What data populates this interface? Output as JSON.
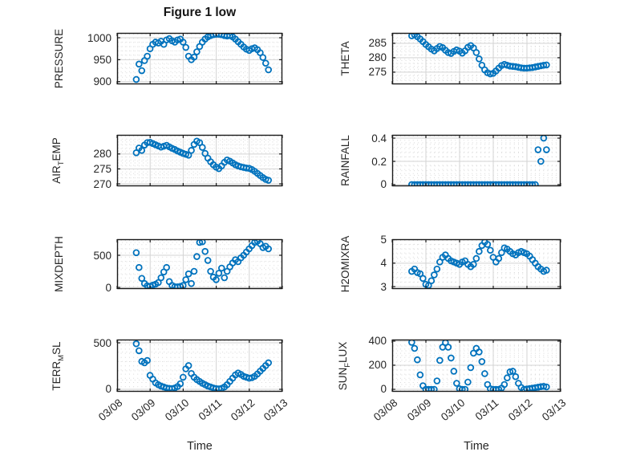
{
  "chart_data": {
    "type": "scatter",
    "figure_title": "Figure 1 low",
    "xlabel": "Time",
    "marker": "open-circle",
    "marker_color": "#0072BD",
    "axis_color": "#1a1a1a",
    "label_color": "#262626",
    "grid_major_color": "#d3d3d3",
    "grid_minor_color": "#d9d9d9",
    "grid": "on",
    "minor_grid": "dotted",
    "layout": "4 rows x 2 columns",
    "x_unit": "days since 03/08 00:00",
    "xlim_days": [
      0,
      5
    ],
    "x_tick_positions_days": [
      0,
      1,
      2,
      3,
      4,
      5
    ],
    "x_tick_labels": [
      "03/08",
      "03/09",
      "03/10",
      "03/11",
      "03/12",
      "03/13"
    ],
    "x_minor_step_days": 0.125,
    "x_days": [
      0.58,
      0.663,
      0.747,
      0.83,
      0.913,
      0.997,
      1.08,
      1.163,
      1.247,
      1.33,
      1.413,
      1.497,
      1.58,
      1.663,
      1.747,
      1.83,
      1.913,
      1.997,
      2.08,
      2.163,
      2.247,
      2.33,
      2.413,
      2.497,
      2.58,
      2.663,
      2.747,
      2.83,
      2.913,
      2.997,
      3.08,
      3.163,
      3.247,
      3.33,
      3.413,
      3.497,
      3.58,
      3.663,
      3.747,
      3.83,
      3.913,
      3.997,
      4.08,
      4.163,
      4.247,
      4.33,
      4.413,
      4.497,
      4.58
    ],
    "subplots": [
      {
        "name": "PRESSURE",
        "row": 0,
        "col": 0,
        "ylabel_pre": "PRESSURE",
        "ylabel_sub": "",
        "ylabel_post": "",
        "yticks": [
          900,
          950,
          1000
        ],
        "ytick_labels": [
          "900",
          "950",
          "1000"
        ],
        "ylim": [
          894,
          1011
        ],
        "yminor": 10,
        "y": [
          905,
          940,
          925,
          948,
          958,
          975,
          985,
          990,
          988,
          992,
          985,
          995,
          998,
          993,
          990,
          995,
          997,
          990,
          978,
          958,
          950,
          956,
          968,
          980,
          990,
          997,
          1002,
          1005,
          1007,
          1008,
          1008,
          1007,
          1005,
          1004,
          1005,
          1002,
          997,
          991,
          985,
          979,
          974,
          971,
          975,
          977,
          973,
          966,
          955,
          942,
          927
        ]
      },
      {
        "name": "THETA",
        "row": 0,
        "col": 1,
        "ylabel_pre": "THETA",
        "ylabel_sub": "",
        "ylabel_post": "",
        "yticks": [
          275,
          280,
          285
        ],
        "ytick_labels": [
          "275",
          "280",
          "285"
        ],
        "ylim": [
          270.8,
          288.6
        ],
        "yminor": 1,
        "y": [
          287.6,
          288.0,
          287.3,
          286.5,
          285.6,
          284.6,
          283.8,
          283.0,
          282.4,
          283.2,
          283.9,
          283.5,
          282.6,
          281.8,
          281.5,
          282.2,
          282.7,
          282.3,
          281.6,
          282.4,
          283.6,
          284.2,
          283.4,
          281.8,
          279.6,
          277.4,
          275.8,
          274.8,
          274.4,
          274.6,
          275.4,
          276.4,
          277.3,
          277.7,
          277.4,
          277.1,
          277.0,
          276.9,
          276.7,
          276.5,
          276.4,
          276.4,
          276.5,
          276.6,
          276.8,
          277.0,
          277.2,
          277.4,
          277.5
        ]
      },
      {
        "name": "AIR_TEMP",
        "row": 1,
        "col": 0,
        "ylabel_pre": "AIR",
        "ylabel_sub": "T",
        "ylabel_post": "EMP",
        "yticks": [
          270,
          275,
          280
        ],
        "ytick_labels": [
          "270",
          "275",
          "280"
        ],
        "ylim": [
          269.2,
          286.4
        ],
        "yminor": 1,
        "y": [
          280.4,
          282.0,
          281.2,
          283.0,
          283.8,
          283.9,
          283.5,
          283.1,
          282.7,
          282.3,
          282.6,
          282.9,
          282.4,
          281.9,
          281.5,
          281.0,
          280.6,
          280.2,
          279.9,
          279.6,
          281.2,
          283.2,
          284.3,
          283.8,
          282.2,
          280.2,
          278.6,
          277.4,
          276.4,
          275.6,
          275.1,
          276.0,
          277.2,
          278.0,
          277.6,
          277.0,
          276.4,
          276.0,
          275.7,
          275.5,
          275.3,
          275.2,
          274.8,
          274.2,
          273.5,
          272.8,
          272.1,
          271.5,
          271.2
        ]
      },
      {
        "name": "RAINFALL",
        "row": 1,
        "col": 1,
        "ylabel_pre": "RAINFALL",
        "ylabel_sub": "",
        "ylabel_post": "",
        "yticks": [
          0,
          0.2,
          0.4
        ],
        "ytick_labels": [
          "0",
          "0.2",
          "0.4"
        ],
        "ylim": [
          -0.014,
          0.428
        ],
        "yminor": 0.04,
        "y": [
          0,
          0,
          0,
          0,
          0,
          0,
          0,
          0,
          0,
          0,
          0,
          0,
          0,
          0,
          0,
          0,
          0,
          0,
          0,
          0,
          0,
          0,
          0,
          0,
          0,
          0,
          0,
          0,
          0,
          0,
          0,
          0,
          0,
          0,
          0,
          0,
          0,
          0,
          0,
          0,
          0,
          0,
          0,
          0,
          0,
          0.3,
          0.2,
          0.4,
          0.3
        ]
      },
      {
        "name": "MIXDEPTH",
        "row": 2,
        "col": 0,
        "ylabel_pre": "MIXDEPTH",
        "ylabel_sub": "",
        "ylabel_post": "",
        "yticks": [
          0,
          500
        ],
        "ytick_labels": [
          "0",
          "500"
        ],
        "ylim": [
          -25,
          750
        ],
        "yminor": 100,
        "y": [
          540,
          310,
          140,
          60,
          25,
          15,
          35,
          50,
          75,
          150,
          240,
          310,
          90,
          30,
          10,
          8,
          15,
          30,
          120,
          210,
          60,
          250,
          480,
          700,
          710,
          560,
          420,
          250,
          160,
          120,
          220,
          300,
          150,
          250,
          320,
          380,
          430,
          400,
          460,
          500,
          550,
          600,
          650,
          700,
          720,
          680,
          620,
          640,
          600
        ]
      },
      {
        "name": "H2OMIXRA",
        "row": 2,
        "col": 1,
        "ylabel_pre": "H2OMIXRA",
        "ylabel_sub": "",
        "ylabel_post": "",
        "yticks": [
          3,
          4,
          5
        ],
        "ytick_labels": [
          "3",
          "4",
          "5"
        ],
        "ylim": [
          2.9,
          5.02
        ],
        "yminor": 0.2,
        "y": [
          3.65,
          3.75,
          3.6,
          3.55,
          3.35,
          3.1,
          3.05,
          3.25,
          3.5,
          3.75,
          4.05,
          4.25,
          4.35,
          4.2,
          4.1,
          4.05,
          4.0,
          3.95,
          4.05,
          4.1,
          3.95,
          3.85,
          3.95,
          4.2,
          4.5,
          4.75,
          4.9,
          4.8,
          4.55,
          4.25,
          4.05,
          4.2,
          4.45,
          4.65,
          4.6,
          4.5,
          4.4,
          4.35,
          4.45,
          4.5,
          4.45,
          4.4,
          4.3,
          4.15,
          4.0,
          3.85,
          3.75,
          3.65,
          3.7
        ]
      },
      {
        "name": "TERR_MSL",
        "row": 3,
        "col": 0,
        "ylabel_pre": "TERR",
        "ylabel_sub": "M",
        "ylabel_post": "SL",
        "yticks": [
          0,
          500
        ],
        "ytick_labels": [
          "0",
          "500"
        ],
        "ylim": [
          -26,
          535
        ],
        "yminor": 100,
        "y": [
          490,
          415,
          300,
          285,
          310,
          150,
          110,
          70,
          50,
          35,
          25,
          15,
          10,
          8,
          15,
          30,
          60,
          130,
          220,
          255,
          170,
          130,
          105,
          85,
          65,
          50,
          35,
          25,
          15,
          8,
          5,
          10,
          25,
          50,
          85,
          120,
          155,
          175,
          160,
          140,
          130,
          120,
          125,
          140,
          165,
          195,
          225,
          255,
          285
        ]
      },
      {
        "name": "SUN_FLUX",
        "row": 3,
        "col": 1,
        "ylabel_pre": "SUN",
        "ylabel_sub": "F",
        "ylabel_post": "LUX",
        "yticks": [
          0,
          200,
          400
        ],
        "ytick_labels": [
          "0",
          "200",
          "400"
        ],
        "ylim": [
          -20,
          413
        ],
        "yminor": 40,
        "y": [
          390,
          340,
          245,
          120,
          30,
          0,
          0,
          0,
          0,
          70,
          240,
          350,
          388,
          350,
          260,
          150,
          50,
          5,
          0,
          0,
          60,
          180,
          300,
          340,
          310,
          230,
          130,
          40,
          5,
          0,
          0,
          0,
          10,
          40,
          95,
          145,
          150,
          105,
          50,
          15,
          0,
          3,
          6,
          10,
          14,
          18,
          22,
          25,
          20
        ]
      }
    ]
  }
}
